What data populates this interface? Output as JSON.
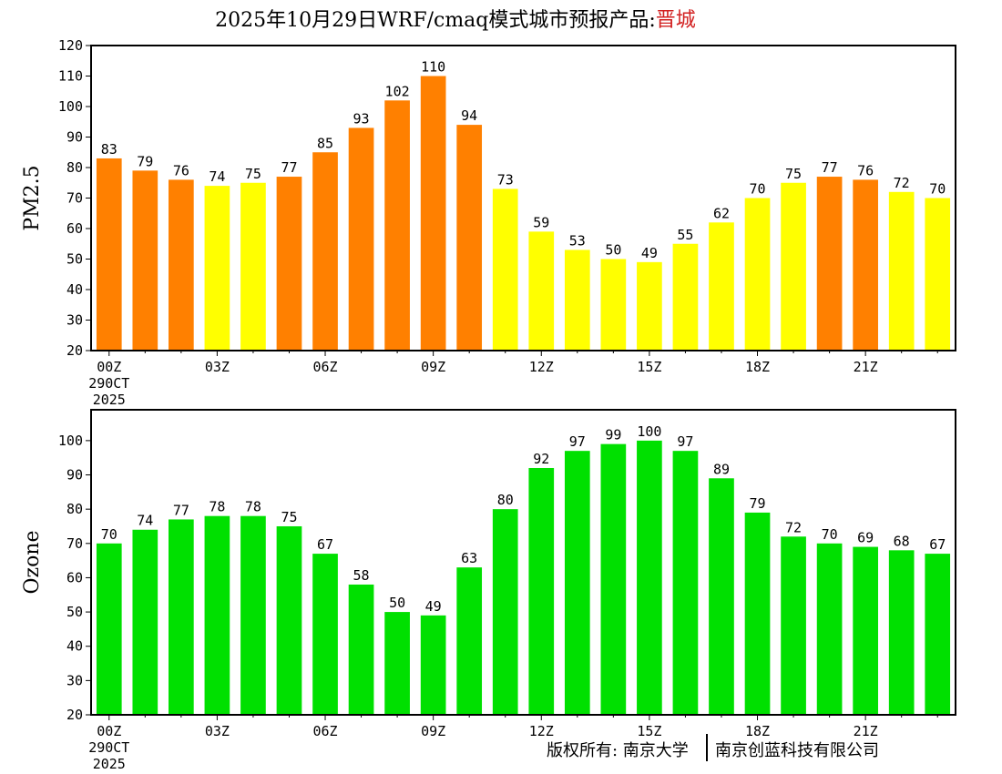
{
  "header": {
    "title_prefix": "2025年10月29日WRF/cmaq模式城市预报产品:",
    "city": "晋城"
  },
  "footer": {
    "credit_university": "版权所有: 南京大学",
    "credit_company": "南京创蓝科技有限公司"
  },
  "colors": {
    "pm_high": "#ff8000",
    "pm_mid": "#ffff00",
    "ozone": "#00e000",
    "city_title": "#d22020"
  },
  "chart_data": [
    {
      "type": "bar",
      "title": "PM2.5",
      "ylabel": "PM2.5",
      "xlabel": "",
      "ylim": [
        20,
        120
      ],
      "yticks": [
        20,
        30,
        40,
        50,
        60,
        70,
        80,
        90,
        100,
        110,
        120
      ],
      "tick_labels": [
        "00Z",
        "03Z",
        "06Z",
        "09Z",
        "12Z",
        "15Z",
        "18Z",
        "21Z"
      ],
      "date_label": [
        "290CT",
        "2025"
      ],
      "color_threshold": 75,
      "values": [
        83,
        79,
        76,
        74,
        75,
        77,
        85,
        93,
        102,
        110,
        94,
        73,
        59,
        53,
        50,
        49,
        55,
        62,
        70,
        75,
        77,
        76,
        72,
        70
      ]
    },
    {
      "type": "bar",
      "title": "Ozone",
      "ylabel": "Ozone",
      "xlabel": "",
      "ylim": [
        20,
        109
      ],
      "yticks": [
        20,
        30,
        40,
        50,
        60,
        70,
        80,
        90,
        100
      ],
      "tick_labels": [
        "00Z",
        "03Z",
        "06Z",
        "09Z",
        "12Z",
        "15Z",
        "18Z",
        "21Z"
      ],
      "date_label": [
        "290CT",
        "2025"
      ],
      "values": [
        70,
        74,
        77,
        78,
        78,
        75,
        67,
        58,
        50,
        49,
        63,
        80,
        92,
        97,
        99,
        100,
        97,
        89,
        79,
        72,
        70,
        69,
        68,
        67
      ]
    }
  ]
}
